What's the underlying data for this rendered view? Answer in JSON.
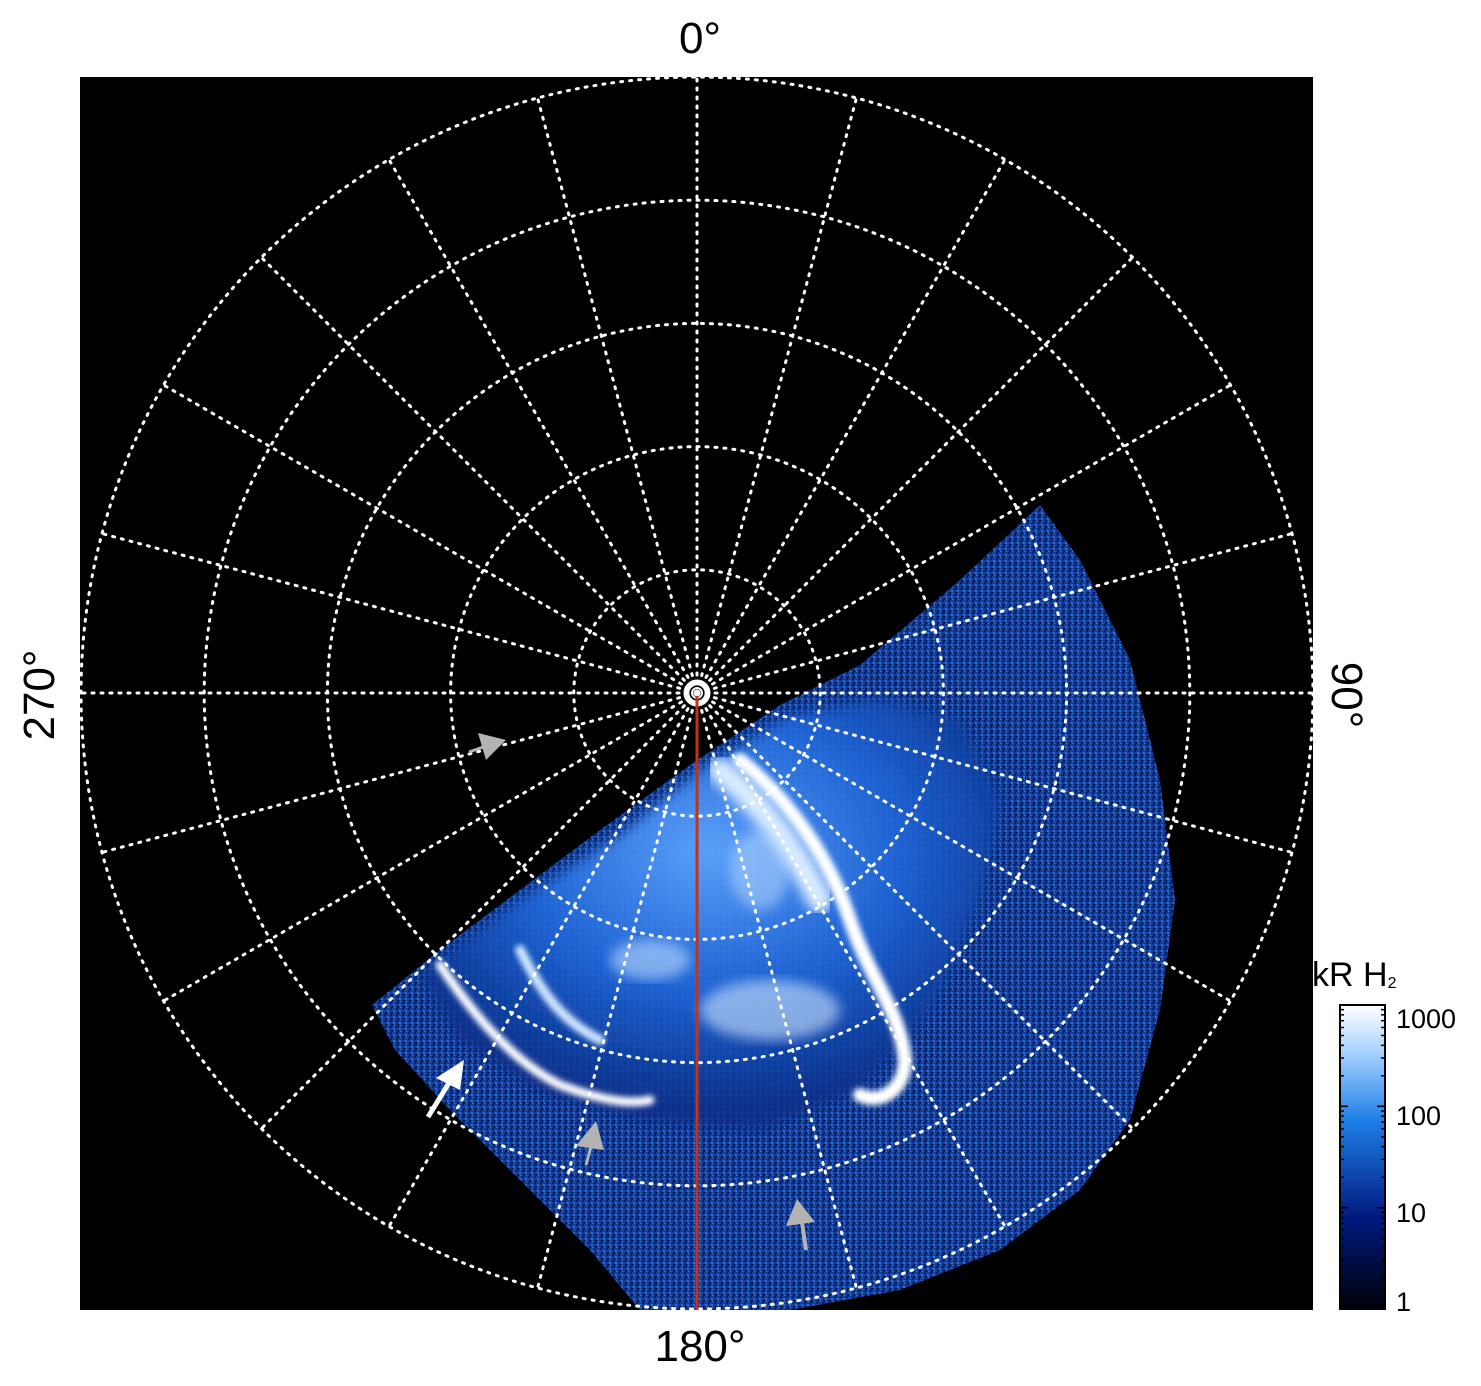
{
  "labels": {
    "top": "0°",
    "bottom": "180°",
    "left": "270°",
    "right": "90°"
  },
  "colorbar": {
    "title": "kR H",
    "title_sub": "2",
    "scale": "log",
    "ticks": [
      "1000",
      "100",
      "10",
      "1"
    ],
    "tick_values": [
      1000,
      100,
      10,
      1
    ],
    "range": [
      1,
      1000
    ],
    "colors": [
      "#000010",
      "#00209a",
      "#1e7fe6",
      "#ffffff"
    ]
  },
  "colors": {
    "background": "#000000",
    "grid": "#ffffff",
    "meridian_line": "#c83214",
    "aurora_base": "#1a5fd0",
    "aurora_bright": "#ffffff",
    "arrow_primary": "#ffffff",
    "arrow_secondary": "#b3b3b3"
  },
  "grid": {
    "meridian_spacing_deg": 15,
    "rings": 5,
    "style": "dotted"
  },
  "annotations": {
    "arrows": [
      "white-arrow",
      "gray-arrow",
      "gray-arrow",
      "gray-arrow"
    ]
  }
}
